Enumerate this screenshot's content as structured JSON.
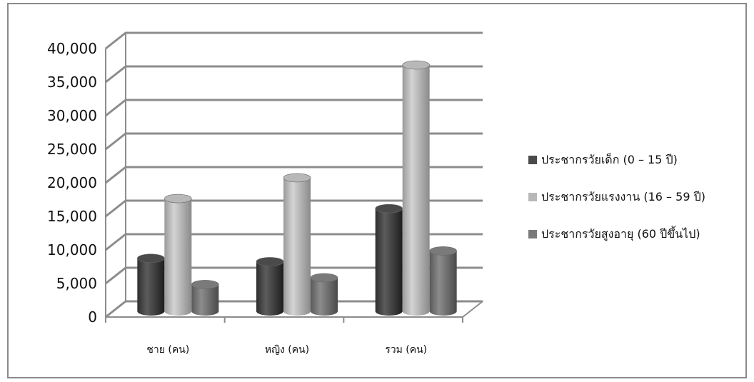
{
  "chart_data": {
    "type": "bar",
    "categories": [
      "ชาย (คน)",
      "หญิง (คน)",
      "รวม (คน)"
    ],
    "series": [
      {
        "name": "ประชากรวัยเด็ก  (0 – 15 ปี)",
        "values": [
          7900,
          7400,
          15300
        ],
        "color": "#4a4a4a"
      },
      {
        "name": "ประชากรวัยแรงงาน  (16 – 59 ปี)",
        "values": [
          16800,
          19900,
          36700
        ],
        "color": "#b8b8b8"
      },
      {
        "name": "ประชากรวัยสูงอายุ  (60 ปีขึ้นไป)",
        "values": [
          4000,
          5000,
          9000
        ],
        "color": "#7a7a7a"
      }
    ],
    "y_ticks": [
      "0",
      "5,000",
      "10,000",
      "15,000",
      "20,000",
      "25,000",
      "30,000",
      "35,000",
      "40,000"
    ],
    "ylim": [
      0,
      40000
    ],
    "grid": true,
    "legend_position": "right",
    "title": "",
    "xlabel": "",
    "ylabel": ""
  }
}
